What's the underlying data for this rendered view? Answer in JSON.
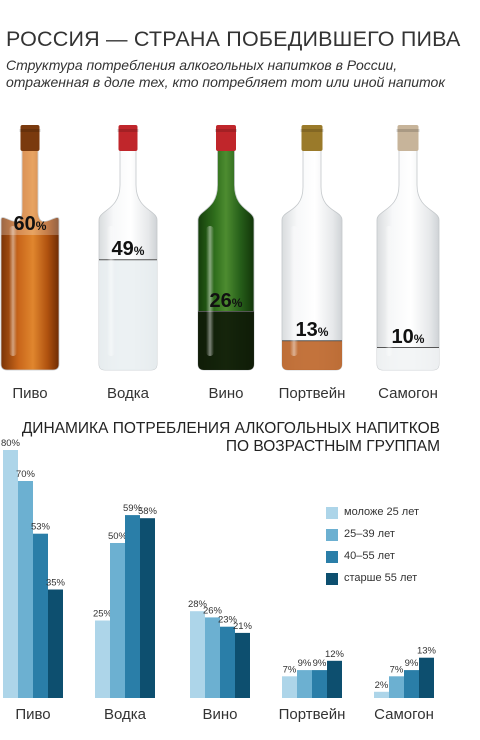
{
  "header": {
    "title": "РОССИЯ — СТРАНА ПОБЕДИВШЕГО ПИВА",
    "subtitle": "Структура потребления алкогольных напитков в России, отраженная в доле тех, кто потребляет тот или иной напиток"
  },
  "section2": {
    "title_line1": "ДИНАМИКА ПОТРЕБЛЕНИЯ АЛКОГОЛЬНЫХ НАПИТКОВ",
    "title_line2": "ПО ВОЗРАСТНЫМ ГРУППАМ"
  },
  "colors": {
    "series": [
      "#add5e9",
      "#6cb0d1",
      "#2a7ea8",
      "#0d4f6f"
    ],
    "beer_glass": "#b5570e",
    "beer_liquid": "#b8601c",
    "wine_glass": "#2e6b1a",
    "cap_red": "#c0262b",
    "cap_port": "#9a7a2a",
    "cap_samogon": "#c7b49a",
    "clear_glass": "#eef0f1"
  },
  "chart_data": [
    {
      "type": "bar",
      "title": "",
      "subtitle": "",
      "categories": [
        "Пиво",
        "Водка",
        "Вино",
        "Портвейн",
        "Самогон"
      ],
      "values": [
        60,
        49,
        26,
        13,
        10
      ],
      "value_labels": [
        "60%",
        "49%",
        "26%",
        "13%",
        "10%"
      ],
      "unit": "%",
      "ylim": [
        0,
        100
      ]
    },
    {
      "type": "bar",
      "title": "",
      "categories": [
        "Пиво",
        "Водка",
        "Вино",
        "Портвейн",
        "Самогон"
      ],
      "series": [
        {
          "name": "моложе 25 лет",
          "values": [
            80,
            25,
            28,
            7,
            2
          ]
        },
        {
          "name": "25–39 лет",
          "values": [
            70,
            50,
            26,
            9,
            7
          ]
        },
        {
          "name": "40–55 лет",
          "values": [
            53,
            59,
            23,
            9,
            9
          ]
        },
        {
          "name": "старше 55 лет",
          "values": [
            35,
            58,
            21,
            12,
            13
          ]
        }
      ],
      "unit": "%",
      "ylim": [
        0,
        80
      ],
      "legend": "right",
      "grid": false
    }
  ]
}
